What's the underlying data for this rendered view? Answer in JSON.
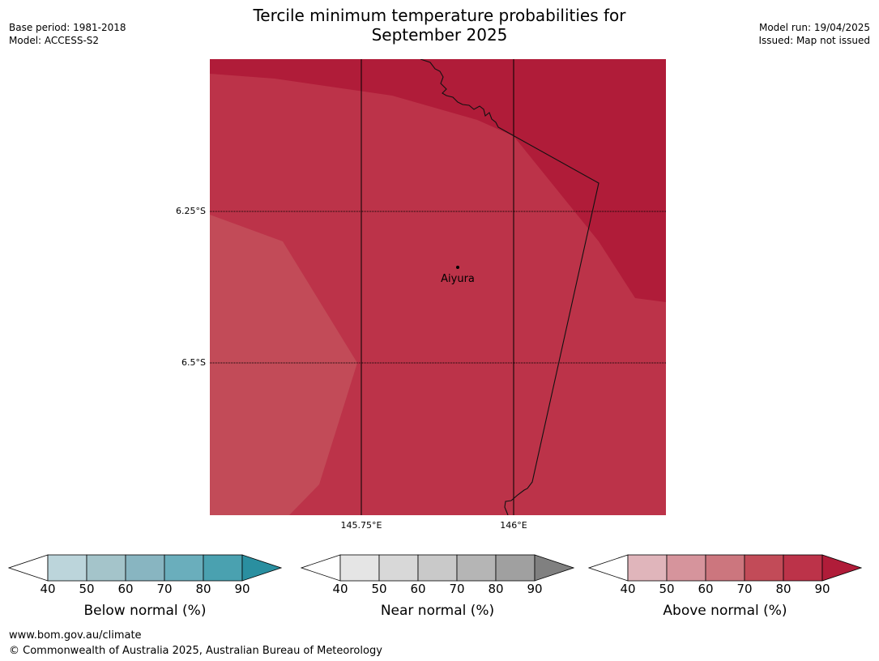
{
  "title_line1": "Tercile minimum temperature probabilities for",
  "title_line2": "September 2025",
  "meta_left": {
    "base_period": "Base period: 1981-2018",
    "model": "Model: ACCESS-S2"
  },
  "meta_right": {
    "model_run": "Model run: 19/04/2025",
    "issued": "Issued: Map not issued"
  },
  "map": {
    "lat_labels": [
      "6.25°S",
      "6.5°S"
    ],
    "lon_labels": [
      "145.75°E",
      "146°E"
    ],
    "place": {
      "name": "Aiyura"
    },
    "fill_colors": {
      "above_80_90": "#bc3349",
      "above_90_plus": "#b01c39",
      "above_70_80": "#c24b58"
    }
  },
  "colorbars": [
    {
      "id": "below",
      "label": "Below normal (%)",
      "ticks": [
        "40",
        "50",
        "60",
        "70",
        "80",
        "90"
      ],
      "colors": [
        "#bcd5db",
        "#a4c4ca",
        "#88b5c1",
        "#6aaebc",
        "#4aa1b0",
        "#2a8fa0"
      ]
    },
    {
      "id": "near",
      "label": "Near normal (%)",
      "ticks": [
        "40",
        "50",
        "60",
        "70",
        "80",
        "90"
      ],
      "colors": [
        "#e5e5e5",
        "#d8d8d8",
        "#c9c9c9",
        "#b5b5b5",
        "#a0a0a0",
        "#808080"
      ]
    },
    {
      "id": "above",
      "label": "Above normal (%)",
      "ticks": [
        "40",
        "50",
        "60",
        "70",
        "80",
        "90"
      ],
      "colors": [
        "#e0b5bb",
        "#d6949c",
        "#cc767e",
        "#c24b58",
        "#bc3349",
        "#b01c39"
      ]
    }
  ],
  "footer": {
    "url": "www.bom.gov.au/climate",
    "copyright": "© Commonwealth of Australia 2025, Australian Bureau of Meteorology"
  }
}
